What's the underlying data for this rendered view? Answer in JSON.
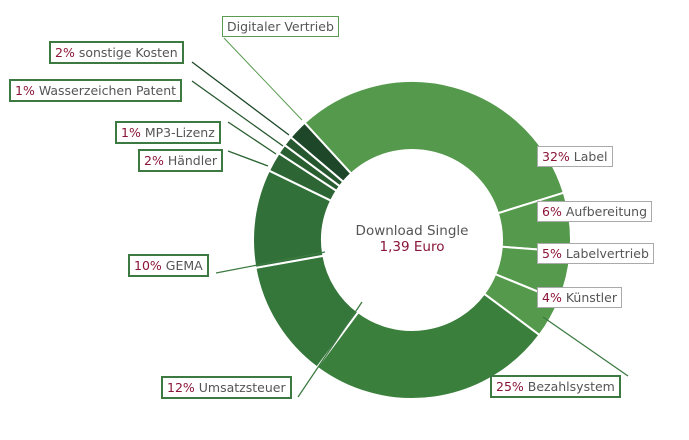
{
  "chart_data": {
    "type": "pie",
    "variant": "donut",
    "center_title": "Download Single",
    "center_value": "1,39 Euro",
    "group_label": "Digitaler Vertrieb",
    "slices": [
      {
        "label": "Label",
        "pct_text": "32%",
        "value": 32,
        "color": "#559a4c"
      },
      {
        "label": "Aufbereitung",
        "pct_text": "6%",
        "value": 6,
        "color": "#559a4c"
      },
      {
        "label": "Labelvertrieb",
        "pct_text": "5%",
        "value": 5,
        "color": "#559a4c"
      },
      {
        "label": "Künstler",
        "pct_text": "4%",
        "value": 4,
        "color": "#559a4c"
      },
      {
        "label": "Bezahlsystem",
        "pct_text": "25%",
        "value": 25,
        "color": "#3a7f3c"
      },
      {
        "label": "Umsatzsteuer",
        "pct_text": "12%",
        "value": 12,
        "color": "#35763a"
      },
      {
        "label": "GEMA",
        "pct_text": "10%",
        "value": 10,
        "color": "#317039"
      },
      {
        "label": "Händler",
        "pct_text": "2%",
        "value": 2,
        "color": "#2d6634"
      },
      {
        "label": "MP3-Lizenz",
        "pct_text": "1%",
        "value": 1,
        "color": "#2a5f31"
      },
      {
        "label": "Wasserzeichen Patent",
        "pct_text": "1%",
        "value": 1,
        "color": "#26572e"
      },
      {
        "label": "sonstige Kosten",
        "pct_text": "2%",
        "value": 2,
        "color": "#1d4728"
      }
    ]
  }
}
